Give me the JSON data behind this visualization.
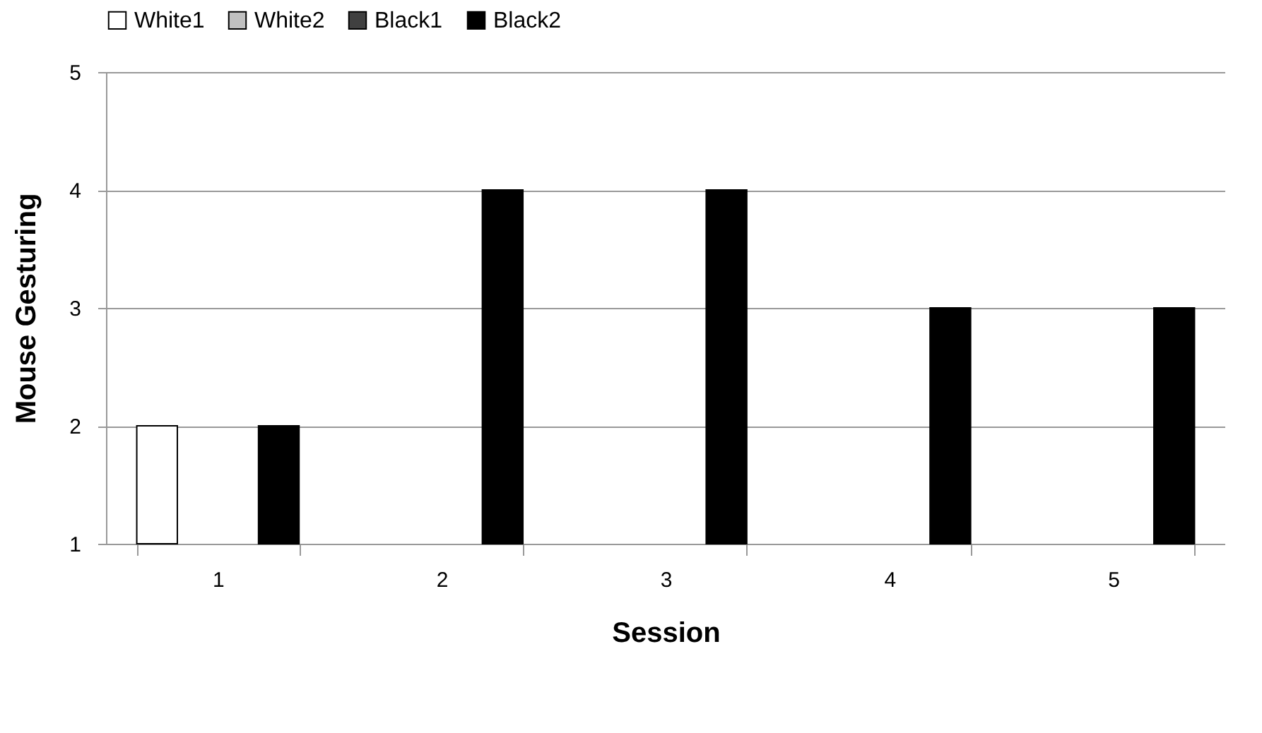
{
  "chart_data": {
    "type": "bar",
    "xlabel": "Session",
    "ylabel": "Mouse Gesturing",
    "categories": [
      "1",
      "2",
      "3",
      "4",
      "5"
    ],
    "series": [
      {
        "name": "White1",
        "color": "#ffffff",
        "values": [
          2,
          null,
          null,
          null,
          null
        ]
      },
      {
        "name": "White2",
        "color": "#c0c0c0",
        "values": [
          null,
          null,
          null,
          null,
          null
        ]
      },
      {
        "name": "Black1",
        "color": "#404040",
        "values": [
          null,
          null,
          null,
          null,
          null
        ]
      },
      {
        "name": "Black2",
        "color": "#000000",
        "values": [
          2,
          4,
          4,
          3,
          3
        ]
      }
    ],
    "ylim": [
      1,
      5
    ],
    "yticks": [
      1,
      2,
      3,
      4,
      5
    ],
    "grid": "y",
    "legend": "top"
  }
}
